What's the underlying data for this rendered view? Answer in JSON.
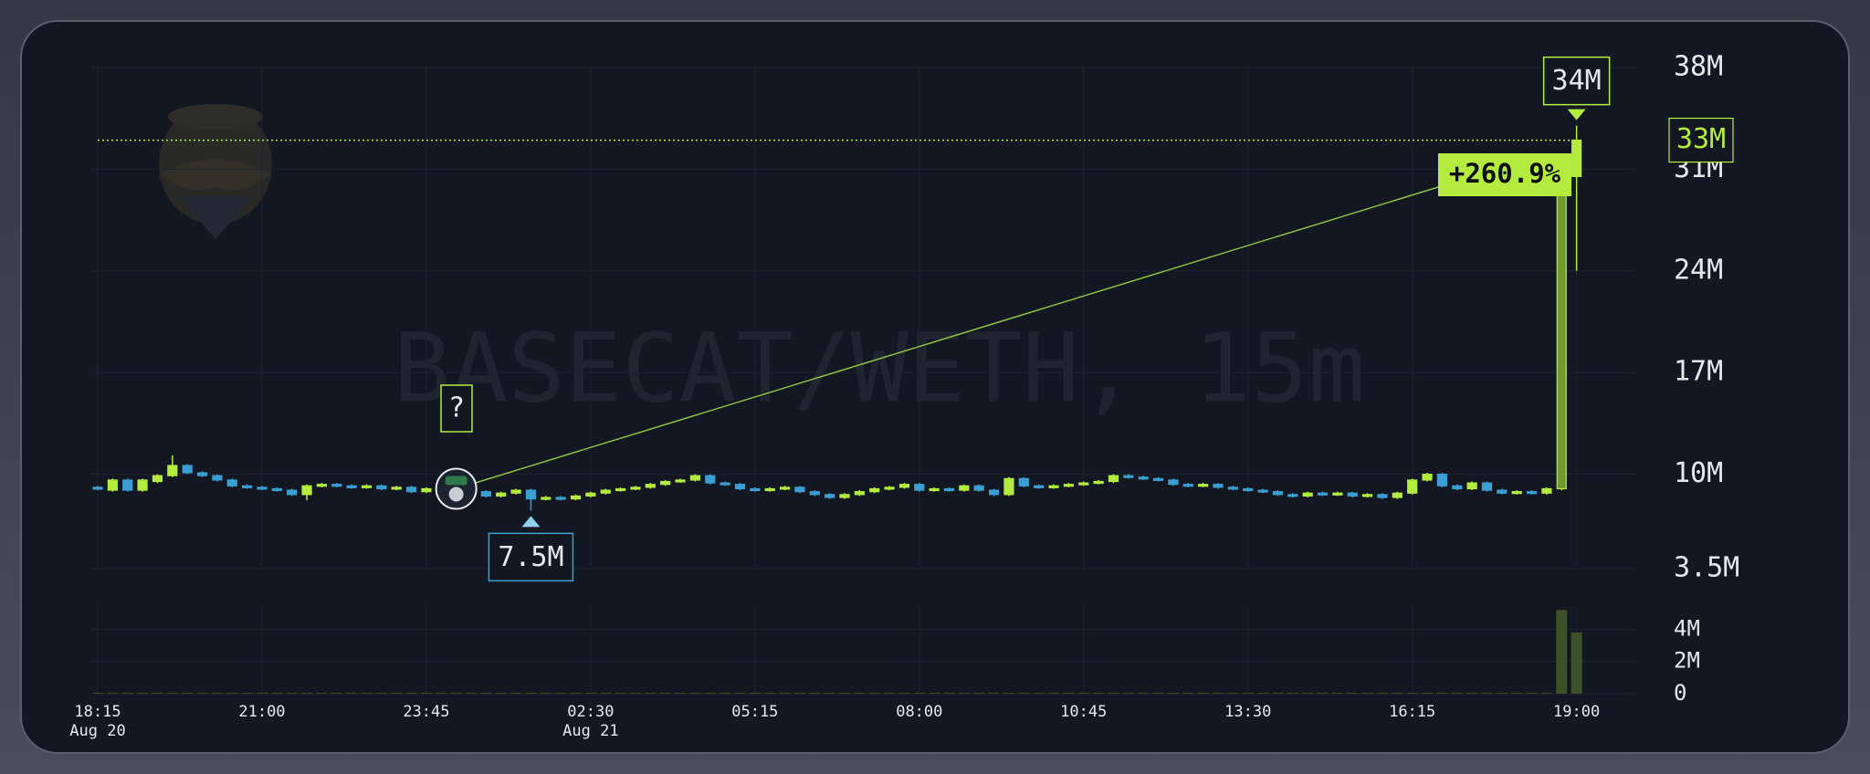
{
  "chart_data": {
    "type": "candlestick",
    "title": "BASECAT/WETH, 15m",
    "up_color": "#b3ec3f",
    "down_color": "#3b9fd3",
    "volume_color": "#3c5226",
    "open": [
      9.1,
      8.9,
      9.6,
      8.9,
      9.5,
      9.9,
      10.6,
      10.1,
      9.9,
      9.6,
      9.2,
      9.1,
      9.0,
      8.9,
      8.6,
      9.2,
      9.3,
      9.2,
      9.1,
      9.2,
      9.0,
      9.1,
      8.8,
      9.0,
      9.1,
      9.0,
      8.8,
      8.5,
      8.7,
      8.9,
      8.3,
      8.4,
      8.3,
      8.5,
      8.7,
      8.9,
      9.0,
      9.1,
      9.3,
      9.5,
      9.6,
      9.9,
      9.4,
      9.3,
      9.0,
      8.9,
      9.0,
      9.1,
      8.8,
      8.6,
      8.4,
      8.6,
      8.8,
      9.0,
      9.1,
      9.3,
      8.9,
      9.0,
      8.9,
      9.2,
      8.9,
      8.6,
      9.7,
      9.2,
      9.1,
      9.2,
      9.3,
      9.4,
      9.5,
      9.9,
      9.8,
      9.7,
      9.6,
      9.3,
      9.2,
      9.3,
      9.1,
      9.0,
      8.9,
      8.8,
      8.6,
      8.5,
      8.7,
      8.6,
      8.7,
      8.5,
      8.6,
      8.4,
      8.7,
      9.6,
      10.0,
      9.2,
      9.0,
      9.4,
      8.9,
      8.7,
      8.8,
      8.7,
      9.0,
      30.5
    ],
    "high": [
      9.2,
      9.7,
      9.7,
      9.7,
      10.0,
      11.3,
      10.7,
      10.2,
      10.0,
      9.7,
      9.3,
      9.2,
      9.1,
      9.0,
      9.3,
      9.4,
      9.4,
      9.3,
      9.3,
      9.3,
      9.2,
      9.2,
      9.1,
      9.2,
      9.2,
      9.1,
      8.9,
      8.8,
      9.0,
      9.0,
      8.5,
      8.5,
      8.6,
      8.8,
      9.0,
      9.1,
      9.2,
      9.4,
      9.6,
      9.7,
      10.0,
      10.0,
      9.5,
      9.4,
      9.1,
      9.1,
      9.2,
      9.2,
      8.9,
      8.7,
      8.7,
      8.9,
      9.1,
      9.2,
      9.4,
      9.4,
      9.1,
      9.1,
      9.3,
      9.3,
      9.0,
      9.8,
      9.8,
      9.3,
      9.3,
      9.4,
      9.5,
      9.6,
      10.0,
      10.0,
      9.9,
      9.8,
      9.7,
      9.4,
      9.4,
      9.4,
      9.2,
      9.1,
      9.0,
      8.9,
      8.7,
      8.8,
      8.8,
      8.8,
      8.8,
      8.7,
      8.7,
      8.8,
      9.7,
      10.1,
      10.1,
      9.3,
      9.5,
      9.5,
      9.0,
      8.9,
      8.9,
      9.1,
      30.5,
      34
    ],
    "low": [
      8.9,
      8.8,
      8.8,
      8.8,
      9.4,
      9.8,
      10.0,
      9.8,
      9.5,
      9.1,
      9.0,
      8.9,
      8.8,
      8.5,
      8.2,
      9.1,
      9.1,
      9.0,
      9.0,
      8.9,
      8.9,
      8.7,
      8.7,
      8.9,
      8.9,
      8.7,
      8.4,
      8.4,
      8.6,
      7.5,
      8.2,
      8.2,
      8.2,
      8.4,
      8.6,
      8.8,
      8.9,
      9.0,
      9.2,
      9.4,
      9.5,
      9.3,
      9.2,
      8.9,
      8.8,
      8.8,
      8.9,
      8.7,
      8.5,
      8.3,
      8.3,
      8.5,
      8.7,
      8.9,
      9.0,
      8.8,
      8.8,
      8.8,
      8.8,
      8.8,
      8.5,
      8.5,
      9.1,
      9.0,
      9.0,
      9.1,
      9.2,
      9.3,
      9.4,
      9.7,
      9.6,
      9.5,
      9.2,
      9.1,
      9.1,
      9.0,
      8.9,
      8.8,
      8.7,
      8.5,
      8.4,
      8.4,
      8.5,
      8.5,
      8.4,
      8.4,
      8.3,
      8.3,
      8.6,
      9.5,
      9.1,
      8.9,
      8.9,
      8.8,
      8.6,
      8.6,
      8.6,
      8.6,
      8.9,
      24
    ],
    "close": [
      9.0,
      9.6,
      8.9,
      9.6,
      9.9,
      10.6,
      10.1,
      9.9,
      9.6,
      9.2,
      9.1,
      9.0,
      8.9,
      8.6,
      9.2,
      9.3,
      9.2,
      9.1,
      9.2,
      9.0,
      9.1,
      8.8,
      9.0,
      9.1,
      9.0,
      8.8,
      8.5,
      8.7,
      8.9,
      8.3,
      8.4,
      8.3,
      8.5,
      8.7,
      8.9,
      9.0,
      9.1,
      9.3,
      9.5,
      9.6,
      9.9,
      9.4,
      9.3,
      9.0,
      8.9,
      9.0,
      9.1,
      8.8,
      8.6,
      8.4,
      8.6,
      8.8,
      9.0,
      9.1,
      9.3,
      8.9,
      9.0,
      8.9,
      9.2,
      8.9,
      8.6,
      9.7,
      9.2,
      9.1,
      9.2,
      9.3,
      9.4,
      9.5,
      9.9,
      9.8,
      9.7,
      9.6,
      9.3,
      9.2,
      9.3,
      9.1,
      9.0,
      8.9,
      8.8,
      8.6,
      8.5,
      8.7,
      8.6,
      8.7,
      8.5,
      8.6,
      8.4,
      8.7,
      9.6,
      10.0,
      9.2,
      9.0,
      9.4,
      8.9,
      8.7,
      8.8,
      8.7,
      9.0,
      30.5,
      33
    ],
    "volume": [
      0.05,
      0.05,
      0.05,
      0.05,
      0.05,
      0.05,
      0.05,
      0.05,
      0.05,
      0.05,
      0.05,
      0.05,
      0.05,
      0.05,
      0.05,
      0.05,
      0.05,
      0.05,
      0.05,
      0.05,
      0.05,
      0.05,
      0.05,
      0.05,
      0.05,
      0.05,
      0.05,
      0.05,
      0.05,
      0.05,
      0.05,
      0.05,
      0.05,
      0.05,
      0.05,
      0.05,
      0.05,
      0.05,
      0.05,
      0.05,
      0.05,
      0.05,
      0.05,
      0.05,
      0.05,
      0.05,
      0.05,
      0.05,
      0.05,
      0.05,
      0.05,
      0.05,
      0.05,
      0.05,
      0.05,
      0.05,
      0.05,
      0.05,
      0.05,
      0.05,
      0.05,
      0.05,
      0.05,
      0.05,
      0.05,
      0.05,
      0.05,
      0.05,
      0.05,
      0.05,
      0.05,
      0.05,
      0.05,
      0.05,
      0.05,
      0.05,
      0.05,
      0.05,
      0.05,
      0.05,
      0.05,
      0.05,
      0.05,
      0.05,
      0.05,
      0.05,
      0.05,
      0.05,
      0.05,
      0.05,
      0.05,
      0.05,
      0.05,
      0.05,
      0.05,
      0.05,
      0.05,
      0.05,
      5.2,
      3.8
    ],
    "ylim": [
      3.5,
      38
    ],
    "yticks": [
      {
        "value": 38,
        "label": "38M"
      },
      {
        "value": 31,
        "label": "31M"
      },
      {
        "value": 24,
        "label": "24M"
      },
      {
        "value": 17,
        "label": "17M"
      },
      {
        "value": 10,
        "label": "10M"
      },
      {
        "value": 3.5,
        "label": "3.5M"
      }
    ],
    "volume_ylim": [
      0,
      5.5
    ],
    "volume_yticks": [
      {
        "value": 4,
        "label": "4M"
      },
      {
        "value": 2,
        "label": "2M"
      },
      0
    ],
    "xticks": [
      {
        "value": 0,
        "label": "18:15",
        "date": "Aug 20"
      },
      {
        "value": 11,
        "label": "21:00"
      },
      {
        "value": 22,
        "label": "23:45"
      },
      {
        "value": 33,
        "label": "02:30",
        "date": "Aug 21"
      },
      {
        "value": 44,
        "label": "05:15"
      },
      {
        "value": 55,
        "label": "08:00"
      },
      {
        "value": 66,
        "label": "10:45"
      },
      {
        "value": 77,
        "label": "13:30"
      },
      {
        "value": 88,
        "label": "16:15"
      },
      {
        "value": 99,
        "label": "19:00"
      }
    ],
    "grid": true,
    "annotations": {
      "change": "+260.9%",
      "question": "?",
      "high": {
        "value": 34,
        "label": "34M"
      },
      "low": {
        "value": 7.5,
        "label": "7.5M"
      },
      "last": {
        "value": 33,
        "label": "33M"
      }
    }
  }
}
